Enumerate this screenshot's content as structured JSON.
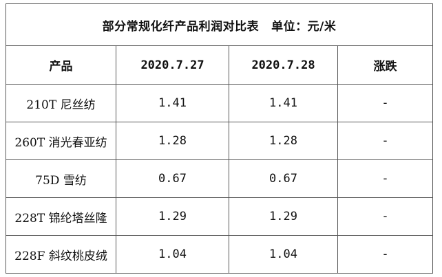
{
  "title": {
    "text": "部分常规化纤产品利润对比表",
    "unit": "单位：元/米"
  },
  "headers": [
    "产品",
    "2020.7.27",
    "2020.7.28",
    "涨跌"
  ],
  "rows": [
    {
      "product": "210T 尼丝纺",
      "d0727": "1.41",
      "d0728": "1.41",
      "change": "-"
    },
    {
      "product": "260T 消光春亚纺",
      "d0727": "1.28",
      "d0728": "1.28",
      "change": "-"
    },
    {
      "product": "75D 雪纺",
      "d0727": "0.67",
      "d0728": "0.67",
      "change": "-"
    },
    {
      "product": "228T 锦纶塔丝隆",
      "d0727": "1.29",
      "d0728": "1.29",
      "change": "-"
    },
    {
      "product": "228F 斜纹桃皮绒",
      "d0727": "1.04",
      "d0728": "1.04",
      "change": "-"
    }
  ]
}
